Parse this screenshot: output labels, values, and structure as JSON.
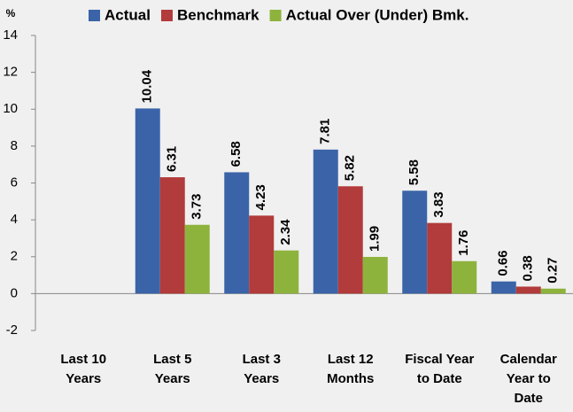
{
  "chart_data": {
    "type": "bar",
    "y_label": "%",
    "categories": [
      [
        "Last 10",
        "Years"
      ],
      [
        "Last 5",
        "Years"
      ],
      [
        "Last 3",
        "Years"
      ],
      [
        "Last 12",
        "Months"
      ],
      [
        "Fiscal Year",
        "to Date"
      ],
      [
        "Calendar",
        "Year to",
        "Date"
      ]
    ],
    "series": [
      {
        "name": "Actual",
        "color": "#3b64a8",
        "values": [
          null,
          10.04,
          6.58,
          7.81,
          5.58,
          0.66
        ]
      },
      {
        "name": "Benchmark",
        "color": "#b23b3b",
        "values": [
          null,
          6.31,
          4.23,
          5.82,
          3.83,
          0.38
        ]
      },
      {
        "name": "Actual Over (Under) Bmk.",
        "color": "#8db33c",
        "values": [
          null,
          3.73,
          2.34,
          1.99,
          1.76,
          0.27
        ]
      }
    ],
    "ylim": [
      -2,
      14
    ],
    "yticks": [
      -2,
      0,
      2,
      4,
      6,
      8,
      10,
      12,
      14
    ],
    "grid": false,
    "legend": "top"
  }
}
